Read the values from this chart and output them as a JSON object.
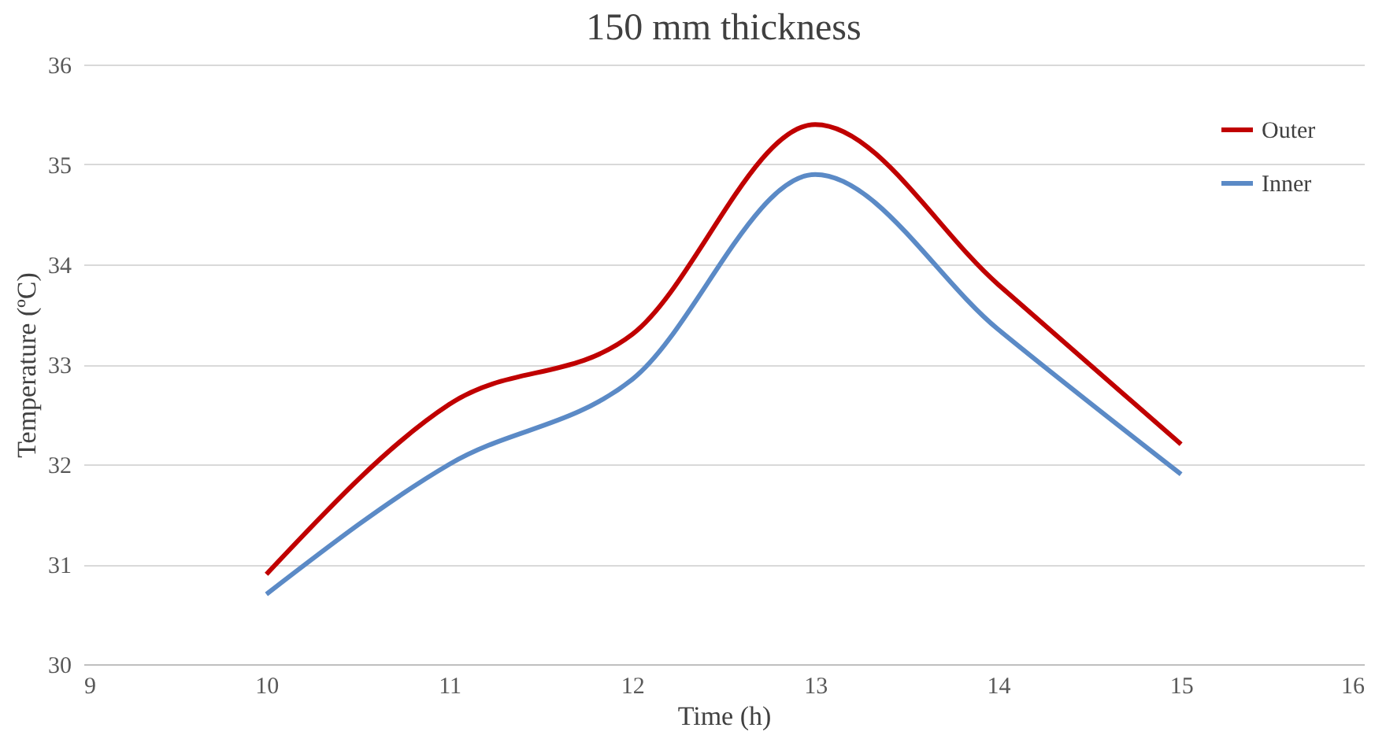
{
  "chart_data": {
    "type": "line",
    "title": "150 mm thickness",
    "xlabel": "Time (h)",
    "ylabel": "Temperature (ºC)",
    "x": [
      10,
      11,
      12,
      13,
      14,
      15
    ],
    "series": [
      {
        "name": "Outer",
        "color": "#c00000",
        "values": [
          30.9,
          32.6,
          33.3,
          35.4,
          33.8,
          32.2
        ]
      },
      {
        "name": "Inner",
        "color": "#5b8ac6",
        "values": [
          30.7,
          32.0,
          32.85,
          34.9,
          33.35,
          31.9
        ]
      }
    ],
    "xlim": [
      9,
      16
    ],
    "xticks": [
      9,
      10,
      11,
      12,
      13,
      14,
      15,
      16
    ],
    "ylim": [
      30,
      36
    ],
    "yticks": [
      30,
      31,
      32,
      33,
      34,
      35,
      36
    ],
    "grid": "y",
    "legend": "top right",
    "marker": "none",
    "line_style": "solid"
  }
}
